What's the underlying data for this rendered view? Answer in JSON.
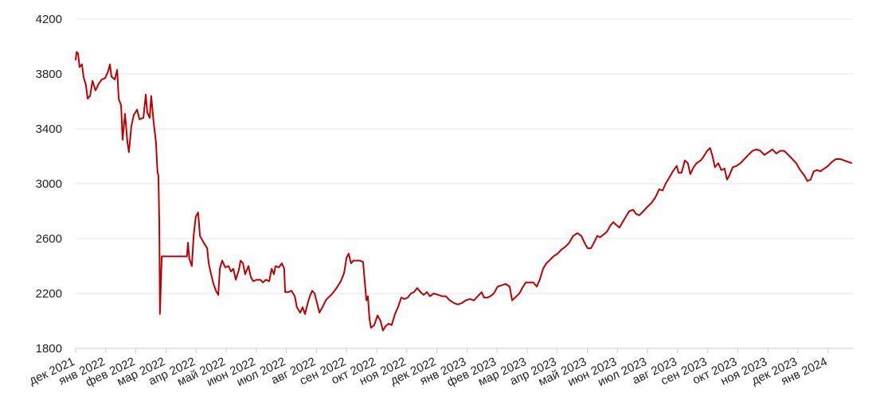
{
  "chart_data": {
    "type": "line",
    "color": "#c00000",
    "grid": true,
    "ylim": [
      1800,
      4200
    ],
    "yticks": [
      1800,
      2200,
      2600,
      3000,
      3400,
      3800,
      4200
    ],
    "xlim": [
      0,
      25.85
    ],
    "xticks": [
      {
        "value": 0,
        "label": "дек 2021"
      },
      {
        "value": 1,
        "label": "янв 2022"
      },
      {
        "value": 2,
        "label": "фев 2022"
      },
      {
        "value": 3,
        "label": "мар 2022"
      },
      {
        "value": 4,
        "label": "апр 2022"
      },
      {
        "value": 5,
        "label": "май 2022"
      },
      {
        "value": 6,
        "label": "июн 2022"
      },
      {
        "value": 7,
        "label": "июл 2022"
      },
      {
        "value": 8,
        "label": "авг 2022"
      },
      {
        "value": 9,
        "label": "сен 2022"
      },
      {
        "value": 10,
        "label": "окт 2022"
      },
      {
        "value": 11,
        "label": "ноя 2022"
      },
      {
        "value": 12,
        "label": "дек 2022"
      },
      {
        "value": 13,
        "label": "янв 2023"
      },
      {
        "value": 14,
        "label": "фев 2023"
      },
      {
        "value": 15,
        "label": "мар 2023"
      },
      {
        "value": 16,
        "label": "апр 2023"
      },
      {
        "value": 17,
        "label": "май 2023"
      },
      {
        "value": 18,
        "label": "июн 2023"
      },
      {
        "value": 19,
        "label": "июл 2023"
      },
      {
        "value": 20,
        "label": "авг 2023"
      },
      {
        "value": 21,
        "label": "сен 2023"
      },
      {
        "value": 22,
        "label": "окт 2023"
      },
      {
        "value": 23,
        "label": "ноя 2023"
      },
      {
        "value": 24,
        "label": "дек 2023"
      },
      {
        "value": 25,
        "label": "янв 2024"
      }
    ],
    "x": [
      0,
      0.03,
      0.08,
      0.13,
      0.21,
      0.26,
      0.34,
      0.4,
      0.48,
      0.56,
      0.66,
      0.77,
      0.87,
      0.98,
      1.08,
      1.14,
      1.19,
      1.3,
      1.38,
      1.43,
      1.51,
      1.56,
      1.64,
      1.72,
      1.77,
      1.85,
      1.93,
      2.04,
      2.12,
      2.25,
      2.33,
      2.38,
      2.46,
      2.51,
      2.59,
      2.67,
      2.72,
      2.75,
      2.78,
      2.8,
      2.86,
      3.7,
      3.73,
      3.78,
      3.86,
      3.92,
      3.99,
      4.07,
      4.13,
      4.23,
      4.37,
      4.42,
      4.5,
      4.58,
      4.66,
      4.74,
      4.79,
      4.87,
      4.97,
      5.08,
      5.16,
      5.24,
      5.32,
      5.42,
      5.48,
      5.56,
      5.63,
      5.74,
      5.82,
      5.9,
      6.01,
      6.14,
      6.22,
      6.32,
      6.43,
      6.51,
      6.59,
      6.64,
      6.75,
      6.85,
      6.93,
      6.96,
      7.06,
      7.17,
      7.28,
      7.35,
      7.46,
      7.54,
      7.62,
      7.7,
      7.78,
      7.86,
      7.94,
      8.02,
      8.1,
      8.2,
      8.31,
      8.39,
      8.49,
      8.6,
      8.7,
      8.81,
      8.92,
      9.0,
      9.07,
      9.15,
      9.23,
      9.34,
      9.44,
      9.55,
      9.6,
      9.66,
      9.71,
      9.76,
      9.81,
      9.92,
      10.03,
      10.13,
      10.21,
      10.29,
      10.4,
      10.5,
      10.61,
      10.71,
      10.82,
      10.93,
      11.03,
      11.14,
      11.24,
      11.35,
      11.46,
      11.56,
      11.67,
      11.77,
      11.9,
      12.04,
      12.17,
      12.3,
      12.43,
      12.57,
      12.7,
      12.83,
      12.96,
      13.1,
      13.23,
      13.36,
      13.49,
      13.57,
      13.68,
      13.78,
      13.89,
      14.02,
      14.15,
      14.29,
      14.42,
      14.5,
      14.6,
      14.74,
      14.84,
      14.95,
      15.08,
      15.21,
      15.32,
      15.42,
      15.53,
      15.64,
      15.74,
      15.87,
      16.01,
      16.14,
      16.27,
      16.4,
      16.53,
      16.67,
      16.8,
      16.93,
      17.01,
      17.12,
      17.22,
      17.33,
      17.43,
      17.54,
      17.65,
      17.75,
      17.86,
      17.96,
      18.07,
      18.17,
      18.28,
      18.39,
      18.52,
      18.62,
      18.73,
      18.86,
      18.99,
      19.13,
      19.26,
      19.39,
      19.5,
      19.6,
      19.71,
      19.84,
      19.97,
      20.03,
      20.13,
      20.24,
      20.34,
      20.42,
      20.53,
      20.63,
      20.77,
      20.87,
      20.98,
      21.08,
      21.16,
      21.24,
      21.35,
      21.45,
      21.56,
      21.64,
      21.72,
      21.83,
      21.96,
      22.09,
      22.22,
      22.35,
      22.49,
      22.62,
      22.75,
      22.88,
      23.02,
      23.15,
      23.28,
      23.41,
      23.54,
      23.68,
      23.81,
      23.94,
      24.07,
      24.21,
      24.31,
      24.42,
      24.52,
      24.63,
      24.74,
      24.87,
      25.0,
      25.13,
      25.26,
      25.4,
      25.53,
      25.66,
      25.79
    ],
    "values": [
      3900,
      3960,
      3950,
      3850,
      3870,
      3780,
      3720,
      3620,
      3640,
      3750,
      3680,
      3730,
      3760,
      3770,
      3820,
      3870,
      3780,
      3760,
      3830,
      3620,
      3570,
      3320,
      3510,
      3300,
      3230,
      3420,
      3500,
      3540,
      3470,
      3480,
      3650,
      3520,
      3480,
      3640,
      3450,
      3300,
      3080,
      3060,
      2700,
      2050,
      2470,
      2470,
      2570,
      2450,
      2400,
      2620,
      2760,
      2790,
      2620,
      2580,
      2530,
      2420,
      2340,
      2270,
      2220,
      2190,
      2380,
      2440,
      2390,
      2400,
      2360,
      2380,
      2300,
      2370,
      2440,
      2420,
      2340,
      2400,
      2320,
      2290,
      2300,
      2300,
      2280,
      2300,
      2290,
      2380,
      2340,
      2400,
      2390,
      2420,
      2380,
      2210,
      2210,
      2220,
      2180,
      2100,
      2060,
      2100,
      2050,
      2120,
      2180,
      2220,
      2200,
      2130,
      2060,
      2100,
      2150,
      2170,
      2190,
      2220,
      2250,
      2290,
      2350,
      2460,
      2490,
      2420,
      2440,
      2440,
      2440,
      2430,
      2300,
      2150,
      2180,
      2020,
      1950,
      1970,
      2040,
      2000,
      1930,
      1960,
      1980,
      1970,
      2050,
      2100,
      2170,
      2160,
      2170,
      2200,
      2210,
      2240,
      2210,
      2190,
      2210,
      2180,
      2200,
      2190,
      2180,
      2180,
      2150,
      2130,
      2120,
      2130,
      2150,
      2160,
      2150,
      2180,
      2210,
      2170,
      2170,
      2180,
      2200,
      2250,
      2260,
      2270,
      2250,
      2150,
      2170,
      2200,
      2240,
      2280,
      2280,
      2280,
      2250,
      2300,
      2380,
      2420,
      2440,
      2470,
      2490,
      2520,
      2540,
      2570,
      2620,
      2640,
      2620,
      2560,
      2530,
      2530,
      2570,
      2620,
      2610,
      2630,
      2650,
      2690,
      2720,
      2700,
      2680,
      2720,
      2760,
      2800,
      2810,
      2780,
      2770,
      2800,
      2830,
      2860,
      2900,
      2960,
      2950,
      3000,
      3040,
      3090,
      3130,
      3080,
      3080,
      3170,
      3150,
      3070,
      3120,
      3150,
      3170,
      3200,
      3240,
      3260,
      3200,
      3120,
      3150,
      3100,
      3110,
      3030,
      3060,
      3120,
      3130,
      3150,
      3180,
      3210,
      3240,
      3250,
      3240,
      3210,
      3230,
      3250,
      3220,
      3240,
      3240,
      3210,
      3180,
      3150,
      3100,
      3060,
      3020,
      3030,
      3090,
      3100,
      3090,
      3110,
      3130,
      3160,
      3180,
      3180,
      3170,
      3160,
      3150
    ]
  }
}
